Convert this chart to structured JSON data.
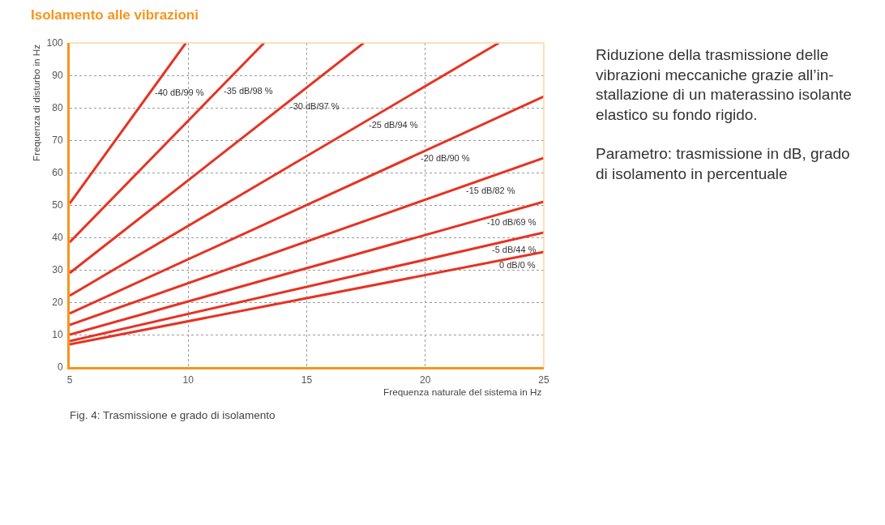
{
  "chart_data": {
    "type": "line",
    "title": "Isolamento alle vibrazioni",
    "xlabel": "Frequenza naturale del sistema in Hz",
    "ylabel": "Frequenza di disturbo in Hz",
    "xlim": [
      5,
      25
    ],
    "ylim": [
      0,
      100
    ],
    "xticks": [
      5,
      10,
      15,
      20,
      25
    ],
    "yticks": [
      0,
      10,
      20,
      30,
      40,
      50,
      60,
      70,
      80,
      90,
      100
    ],
    "grid": true,
    "marker": "none",
    "line_style": "solid",
    "series": [
      {
        "color": "#e63323",
        "x": [
          5,
          9.9
        ],
        "values": [
          50.5,
          100
        ]
      },
      {
        "color": "#e63323",
        "x": [
          5,
          13.2
        ],
        "values": [
          38.5,
          100
        ]
      },
      {
        "color": "#e63323",
        "x": [
          5,
          17.4
        ],
        "values": [
          29,
          100
        ]
      },
      {
        "color": "#e63323",
        "x": [
          5,
          23.1
        ],
        "values": [
          22,
          100
        ]
      },
      {
        "color": "#e63323",
        "x": [
          5,
          25
        ],
        "values": [
          16.5,
          83.5
        ]
      },
      {
        "color": "#e63323",
        "x": [
          5,
          25
        ],
        "values": [
          13,
          64.5
        ]
      },
      {
        "color": "#e63323",
        "x": [
          5,
          25
        ],
        "values": [
          10,
          51
        ]
      },
      {
        "color": "#e63323",
        "x": [
          5,
          25
        ],
        "values": [
          8,
          41.5
        ]
      },
      {
        "color": "#e63323",
        "x": [
          5,
          25
        ],
        "values": [
          7,
          35.5
        ]
      }
    ],
    "annotations": [
      "Fig. 4: Trasmissione e grado di isolamento",
      "Riduzione della trasmissione delle\nvibrazioni meccaniche grazie all’in-\nstallazione di un materassino isolante\nelastico su fondo rigido.",
      "Parametro: trasmissione in dB, grado\ndi isolamento in percentuale",
      {
        "text": "-40 dB/99 %",
        "x": 8.5,
        "y": 86
      },
      {
        "text": "-35 dB/98 %",
        "x": 11.4,
        "y": 86.5
      },
      {
        "text": "-30 dB/97 %",
        "x": 14.2,
        "y": 81.7
      },
      {
        "text": "-25 dB/94 %",
        "x": 17.5,
        "y": 76
      },
      {
        "text": "-20 dB/90 %",
        "x": 19.7,
        "y": 65.7
      },
      {
        "text": "-15 dB/82 %",
        "x": 21.6,
        "y": 55.7
      },
      {
        "text": "-10 dB/69 %",
        "x": 22.5,
        "y": 45.9
      },
      {
        "text": "-5 dB/44 %",
        "x": 22.7,
        "y": 37.6
      },
      {
        "text": "0 dB/0 %",
        "x": 23,
        "y": 32.7
      }
    ]
  }
}
